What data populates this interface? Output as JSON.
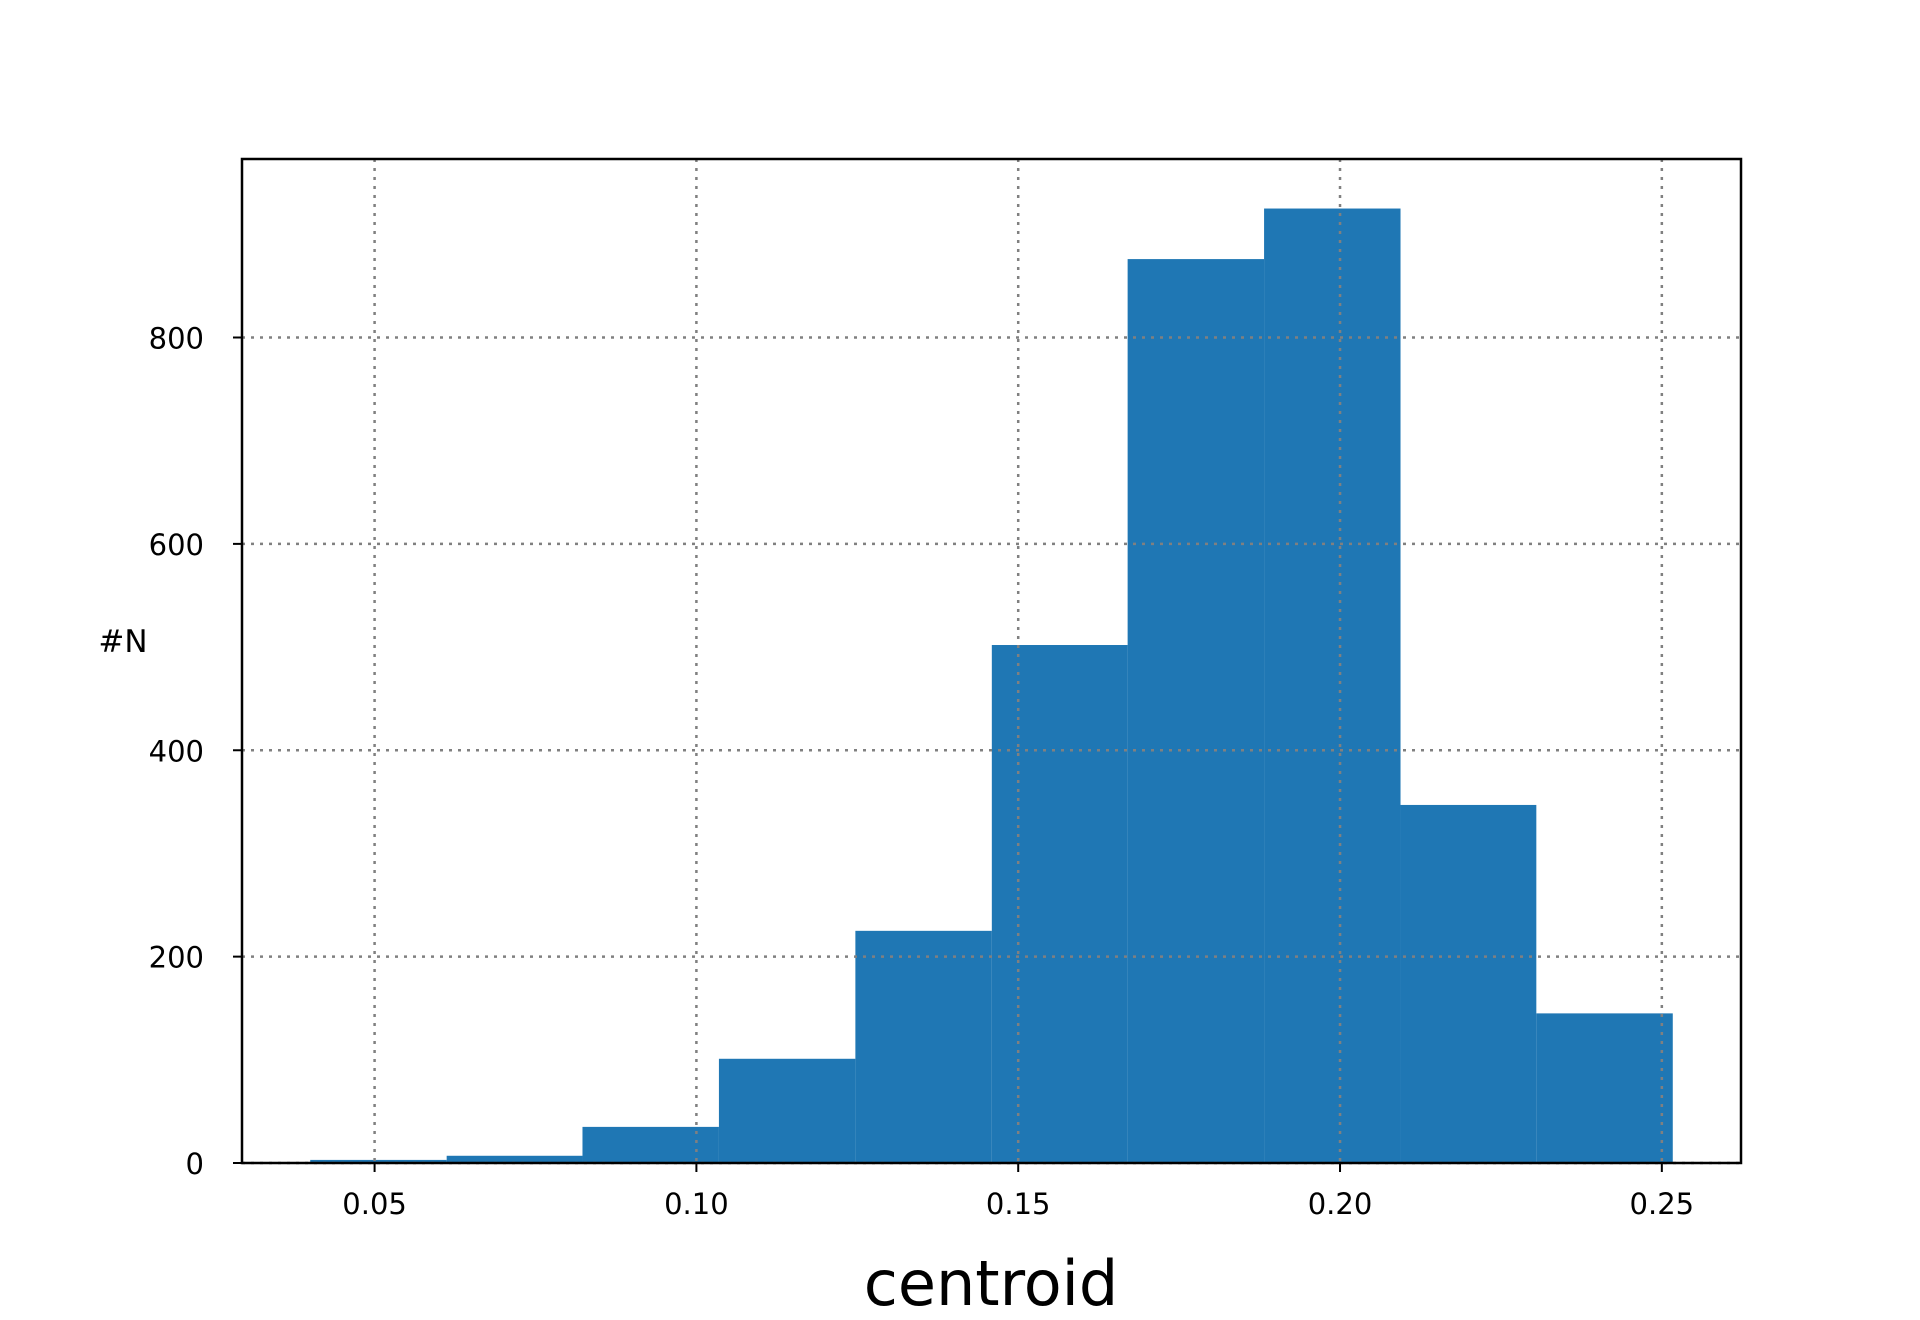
{
  "chart_data": {
    "type": "bar",
    "subtype": "histogram",
    "xlabel": "centroid",
    "ylabel": "#N",
    "bin_edges": [
      0.04,
      0.0612,
      0.0823,
      0.1035,
      0.1247,
      0.1459,
      0.167,
      0.1882,
      0.2094,
      0.2305,
      0.2517
    ],
    "values": [
      3,
      7,
      35,
      101,
      225,
      502,
      876,
      925,
      347,
      145
    ],
    "xlim": [
      0.0294,
      0.2623
    ],
    "ylim": [
      0,
      973
    ],
    "xticks": [
      "0.05",
      "0.10",
      "0.15",
      "0.20",
      "0.25"
    ],
    "yticks": [
      "0",
      "200",
      "400",
      "600",
      "800"
    ],
    "grid": true,
    "grid_style": "dotted",
    "bar_color": "#1f77b4",
    "grid_color": "#808080"
  }
}
